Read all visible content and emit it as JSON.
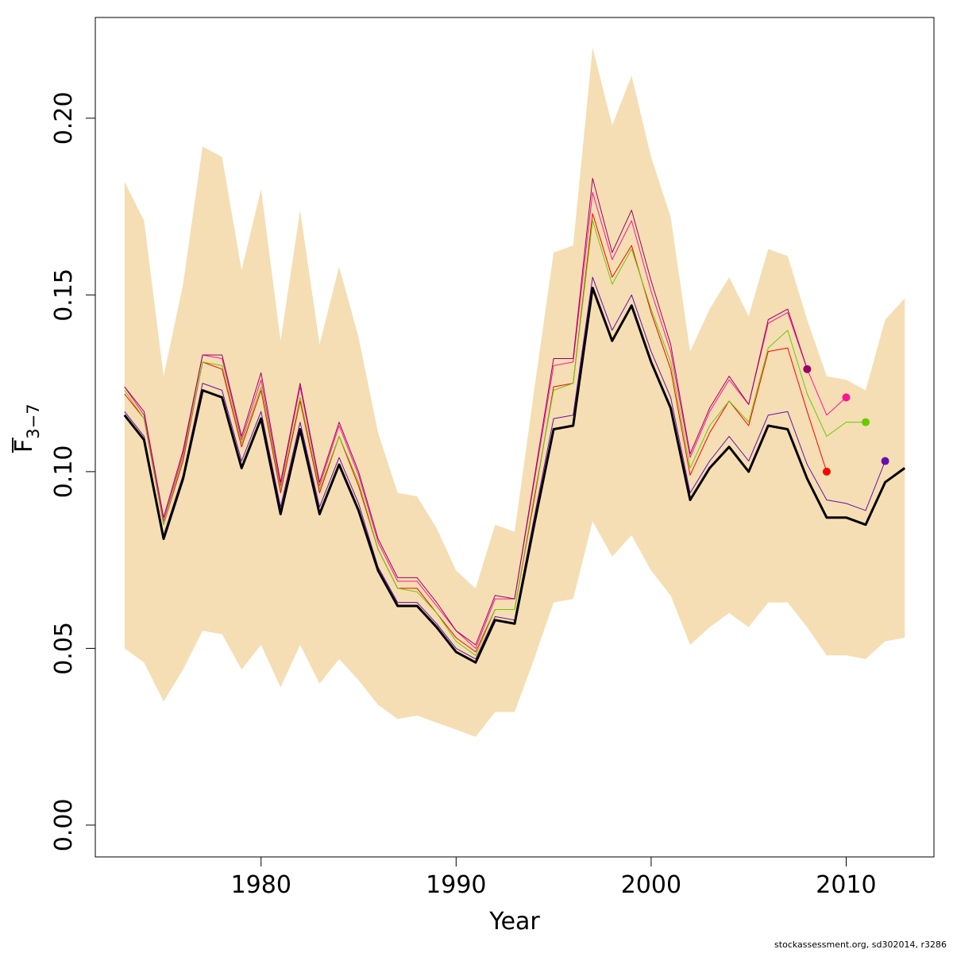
{
  "chart_data": {
    "type": "line",
    "xlabel": "Year",
    "ylabel_main": "F",
    "ylabel_sub": "3−7",
    "xlim": [
      1971.5,
      2014.5
    ],
    "ylim": [
      -0.009,
      0.2285
    ],
    "x_ticks": [
      1980,
      1990,
      2000,
      2010
    ],
    "y_ticks": [
      0.0,
      0.05,
      0.1,
      0.15,
      0.2
    ],
    "y_tick_labels": [
      "0.00",
      "0.05",
      "0.10",
      "0.15",
      "0.20"
    ],
    "band_color": "#f5deb3",
    "band": {
      "years": [
        1973,
        1974,
        1975,
        1976,
        1977,
        1978,
        1979,
        1980,
        1981,
        1982,
        1983,
        1984,
        1985,
        1986,
        1987,
        1988,
        1989,
        1990,
        1991,
        1992,
        1993,
        1994,
        1995,
        1996,
        1997,
        1998,
        1999,
        2000,
        2001,
        2002,
        2003,
        2004,
        2005,
        2006,
        2007,
        2008,
        2009,
        2010,
        2011,
        2012,
        2013
      ],
      "upper": [
        0.182,
        0.171,
        0.127,
        0.153,
        0.192,
        0.189,
        0.157,
        0.18,
        0.137,
        0.174,
        0.136,
        0.158,
        0.138,
        0.111,
        0.094,
        0.093,
        0.084,
        0.072,
        0.067,
        0.085,
        0.083,
        0.123,
        0.162,
        0.164,
        0.22,
        0.198,
        0.212,
        0.189,
        0.172,
        0.134,
        0.146,
        0.155,
        0.144,
        0.163,
        0.161,
        0.143,
        0.127,
        0.126,
        0.123,
        0.143,
        0.149
      ],
      "lower": [
        0.05,
        0.046,
        0.035,
        0.044,
        0.055,
        0.054,
        0.044,
        0.051,
        0.039,
        0.051,
        0.04,
        0.047,
        0.041,
        0.034,
        0.03,
        0.031,
        0.029,
        0.027,
        0.025,
        0.032,
        0.032,
        0.047,
        0.063,
        0.064,
        0.086,
        0.076,
        0.082,
        0.072,
        0.065,
        0.051,
        0.056,
        0.06,
        0.056,
        0.063,
        0.063,
        0.056,
        0.048,
        0.048,
        0.047,
        0.052,
        0.053
      ]
    },
    "series": [
      {
        "color": "#000000",
        "width": 3,
        "marker": false,
        "x": [
          1973,
          1974,
          1975,
          1976,
          1977,
          1978,
          1979,
          1980,
          1981,
          1982,
          1983,
          1984,
          1985,
          1986,
          1987,
          1988,
          1989,
          1990,
          1991,
          1992,
          1993,
          1994,
          1995,
          1996,
          1997,
          1998,
          1999,
          2000,
          2001,
          2002,
          2003,
          2004,
          2005,
          2006,
          2007,
          2008,
          2009,
          2010,
          2011,
          2012,
          2013
        ],
        "y": [
          0.116,
          0.109,
          0.081,
          0.098,
          0.123,
          0.121,
          0.101,
          0.115,
          0.088,
          0.112,
          0.088,
          0.102,
          0.089,
          0.072,
          0.062,
          0.062,
          0.056,
          0.049,
          0.046,
          0.058,
          0.057,
          0.085,
          0.112,
          0.113,
          0.152,
          0.137,
          0.147,
          0.131,
          0.118,
          0.092,
          0.101,
          0.107,
          0.1,
          0.113,
          0.112,
          0.098,
          0.087,
          0.087,
          0.085,
          0.097,
          0.101
        ]
      },
      {
        "color": "#6a0dad",
        "width": 1,
        "marker": true,
        "x": [
          1973,
          1974,
          1975,
          1976,
          1977,
          1978,
          1979,
          1980,
          1981,
          1982,
          1983,
          1984,
          1985,
          1986,
          1987,
          1988,
          1989,
          1990,
          1991,
          1992,
          1993,
          1994,
          1995,
          1996,
          1997,
          1998,
          1999,
          2000,
          2001,
          2002,
          2003,
          2004,
          2005,
          2006,
          2007,
          2008,
          2009,
          2010,
          2011,
          2012
        ],
        "y": [
          0.117,
          0.11,
          0.082,
          0.099,
          0.125,
          0.123,
          0.103,
          0.117,
          0.09,
          0.114,
          0.09,
          0.104,
          0.091,
          0.073,
          0.063,
          0.063,
          0.057,
          0.05,
          0.047,
          0.059,
          0.058,
          0.087,
          0.115,
          0.116,
          0.155,
          0.14,
          0.15,
          0.134,
          0.121,
          0.094,
          0.103,
          0.11,
          0.103,
          0.116,
          0.117,
          0.102,
          0.092,
          0.091,
          0.089,
          0.103
        ]
      },
      {
        "color": "#ff0000",
        "width": 1,
        "marker": true,
        "x": [
          1973,
          1974,
          1975,
          1976,
          1977,
          1978,
          1979,
          1980,
          1981,
          1982,
          1983,
          1984,
          1985,
          1986,
          1987,
          1988,
          1989,
          1990,
          1991,
          1992,
          1993,
          1994,
          1995,
          1996,
          1997,
          1998,
          1999,
          2000,
          2001,
          2002,
          2003,
          2004,
          2005,
          2006,
          2007,
          2008,
          2009
        ],
        "y": [
          0.122,
          0.115,
          0.085,
          0.103,
          0.131,
          0.129,
          0.107,
          0.123,
          0.094,
          0.12,
          0.094,
          0.11,
          0.096,
          0.078,
          0.067,
          0.067,
          0.06,
          0.053,
          0.049,
          0.061,
          0.061,
          0.092,
          0.124,
          0.125,
          0.173,
          0.155,
          0.164,
          0.145,
          0.129,
          0.099,
          0.111,
          0.12,
          0.113,
          0.134,
          0.135,
          0.117,
          0.1
        ]
      },
      {
        "color": "#66cc00",
        "width": 1,
        "marker": true,
        "x": [
          1973,
          1974,
          1975,
          1976,
          1977,
          1978,
          1979,
          1980,
          1981,
          1982,
          1983,
          1984,
          1985,
          1986,
          1987,
          1988,
          1989,
          1990,
          1991,
          1992,
          1993,
          1994,
          1995,
          1996,
          1997,
          1998,
          1999,
          2000,
          2001,
          2002,
          2003,
          2004,
          2005,
          2006,
          2007,
          2008,
          2009,
          2010,
          2011
        ],
        "y": [
          0.123,
          0.115,
          0.085,
          0.104,
          0.131,
          0.13,
          0.108,
          0.124,
          0.095,
          0.121,
          0.095,
          0.11,
          0.097,
          0.078,
          0.067,
          0.066,
          0.06,
          0.052,
          0.048,
          0.061,
          0.061,
          0.093,
          0.123,
          0.125,
          0.171,
          0.153,
          0.163,
          0.146,
          0.131,
          0.101,
          0.113,
          0.12,
          0.114,
          0.135,
          0.14,
          0.122,
          0.11,
          0.114,
          0.114
        ]
      },
      {
        "color": "#ff1493",
        "width": 1,
        "marker": true,
        "x": [
          1973,
          1974,
          1975,
          1976,
          1977,
          1978,
          1979,
          1980,
          1981,
          1982,
          1983,
          1984,
          1985,
          1986,
          1987,
          1988,
          1989,
          1990,
          1991,
          1992,
          1993,
          1994,
          1995,
          1996,
          1997,
          1998,
          1999,
          2000,
          2001,
          2002,
          2003,
          2004,
          2005,
          2006,
          2007,
          2008,
          2009,
          2010
        ],
        "y": [
          0.124,
          0.116,
          0.086,
          0.105,
          0.133,
          0.132,
          0.109,
          0.126,
          0.096,
          0.124,
          0.096,
          0.113,
          0.099,
          0.08,
          0.069,
          0.069,
          0.062,
          0.055,
          0.05,
          0.064,
          0.064,
          0.097,
          0.13,
          0.131,
          0.179,
          0.16,
          0.171,
          0.151,
          0.134,
          0.104,
          0.117,
          0.126,
          0.119,
          0.142,
          0.145,
          0.129,
          0.116,
          0.121
        ]
      },
      {
        "color": "#9b0066",
        "width": 1,
        "marker": true,
        "x": [
          1973,
          1974,
          1975,
          1976,
          1977,
          1978,
          1979,
          1980,
          1981,
          1982,
          1983,
          1984,
          1985,
          1986,
          1987,
          1988,
          1989,
          1990,
          1991,
          1992,
          1993,
          1994,
          1995,
          1996,
          1997,
          1998,
          1999,
          2000,
          2001,
          2002,
          2003,
          2004,
          2005,
          2006,
          2007,
          2008
        ],
        "y": [
          0.124,
          0.117,
          0.087,
          0.106,
          0.133,
          0.133,
          0.11,
          0.128,
          0.097,
          0.125,
          0.097,
          0.114,
          0.1,
          0.081,
          0.07,
          0.07,
          0.063,
          0.055,
          0.051,
          0.065,
          0.064,
          0.098,
          0.132,
          0.132,
          0.183,
          0.162,
          0.174,
          0.154,
          0.136,
          0.105,
          0.118,
          0.127,
          0.119,
          0.143,
          0.146,
          0.129
        ]
      }
    ]
  },
  "footer": {
    "credit": "stockassessment.org, sd302014, r3286"
  }
}
